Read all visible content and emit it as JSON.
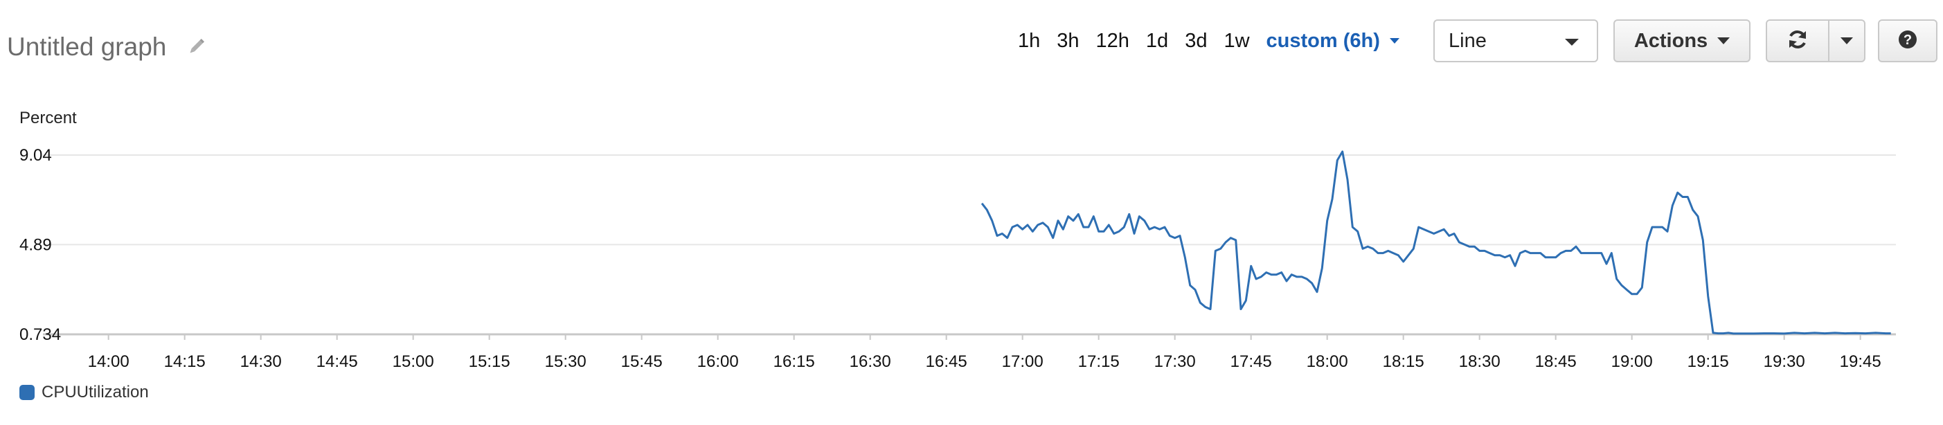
{
  "header": {
    "title": "Untitled graph",
    "ranges": [
      "1h",
      "3h",
      "12h",
      "1d",
      "3d",
      "1w"
    ],
    "custom_range": "custom (6h)",
    "view_type": "Line",
    "actions_label": "Actions",
    "help_glyph": "?"
  },
  "icons": {
    "edit": "pencil-icon",
    "refresh": "refresh-icon",
    "dropdown": "chevron-down-icon",
    "help": "question-icon"
  },
  "colors": {
    "series": "#2e6fb3",
    "accent": "#1a5fb4",
    "grid": "#e6e6e6",
    "axis": "#c8c8c8"
  },
  "chart_data": {
    "type": "line",
    "ylabel": "Percent",
    "ylim": [
      0.734,
      9.04
    ],
    "yticks": [
      0.734,
      4.89,
      9.04
    ],
    "ytick_labels": [
      "0.734",
      "4.89",
      "9.04"
    ],
    "xlim": [
      "13:55",
      "19:52"
    ],
    "xtick_labels": [
      "14:00",
      "14:15",
      "14:30",
      "14:45",
      "15:00",
      "15:15",
      "15:30",
      "15:45",
      "16:00",
      "16:15",
      "16:30",
      "16:45",
      "17:00",
      "17:15",
      "17:30",
      "17:45",
      "18:00",
      "18:15",
      "18:30",
      "18:45",
      "19:00",
      "19:15",
      "19:30",
      "19:45"
    ],
    "grid": true,
    "legend_position": "bottom-left",
    "series": [
      {
        "name": "CPUUtilization",
        "points": [
          [
            "16:52",
            6.8
          ],
          [
            "16:53",
            6.5
          ],
          [
            "16:54",
            6.0
          ],
          [
            "16:55",
            5.3
          ],
          [
            "16:56",
            5.4
          ],
          [
            "16:57",
            5.2
          ],
          [
            "16:58",
            5.7
          ],
          [
            "16:59",
            5.8
          ],
          [
            "17:00",
            5.6
          ],
          [
            "17:01",
            5.8
          ],
          [
            "17:02",
            5.5
          ],
          [
            "17:03",
            5.8
          ],
          [
            "17:04",
            5.9
          ],
          [
            "17:05",
            5.7
          ],
          [
            "17:06",
            5.2
          ],
          [
            "17:07",
            6.0
          ],
          [
            "17:08",
            5.6
          ],
          [
            "17:09",
            6.2
          ],
          [
            "17:10",
            6.0
          ],
          [
            "17:11",
            6.3
          ],
          [
            "17:12",
            5.7
          ],
          [
            "17:13",
            5.7
          ],
          [
            "17:14",
            6.2
          ],
          [
            "17:15",
            5.5
          ],
          [
            "17:16",
            5.5
          ],
          [
            "17:17",
            5.8
          ],
          [
            "17:18",
            5.4
          ],
          [
            "17:19",
            5.5
          ],
          [
            "17:20",
            5.7
          ],
          [
            "17:21",
            6.3
          ],
          [
            "17:22",
            5.4
          ],
          [
            "17:23",
            6.2
          ],
          [
            "17:24",
            6.0
          ],
          [
            "17:25",
            5.6
          ],
          [
            "17:26",
            5.7
          ],
          [
            "17:27",
            5.6
          ],
          [
            "17:28",
            5.7
          ],
          [
            "17:29",
            5.3
          ],
          [
            "17:30",
            5.2
          ],
          [
            "17:31",
            5.3
          ],
          [
            "17:32",
            4.3
          ],
          [
            "17:33",
            3.0
          ],
          [
            "17:34",
            2.8
          ],
          [
            "17:35",
            2.2
          ],
          [
            "17:36",
            2.0
          ],
          [
            "17:37",
            1.9
          ],
          [
            "17:38",
            4.6
          ],
          [
            "17:39",
            4.7
          ],
          [
            "17:40",
            5.0
          ],
          [
            "17:41",
            5.2
          ],
          [
            "17:42",
            5.1
          ],
          [
            "17:43",
            1.9
          ],
          [
            "17:44",
            2.3
          ],
          [
            "17:45",
            3.9
          ],
          [
            "17:46",
            3.3
          ],
          [
            "17:47",
            3.4
          ],
          [
            "17:48",
            3.6
          ],
          [
            "17:49",
            3.5
          ],
          [
            "17:50",
            3.5
          ],
          [
            "17:51",
            3.6
          ],
          [
            "17:52",
            3.2
          ],
          [
            "17:53",
            3.5
          ],
          [
            "17:54",
            3.4
          ],
          [
            "17:55",
            3.4
          ],
          [
            "17:56",
            3.3
          ],
          [
            "17:57",
            3.1
          ],
          [
            "17:58",
            2.7
          ],
          [
            "17:59",
            3.8
          ],
          [
            "18:00",
            6.0
          ],
          [
            "18:01",
            7.0
          ],
          [
            "18:02",
            8.8
          ],
          [
            "18:03",
            9.2
          ],
          [
            "18:04",
            7.9
          ],
          [
            "18:05",
            5.7
          ],
          [
            "18:06",
            5.5
          ],
          [
            "18:07",
            4.7
          ],
          [
            "18:08",
            4.8
          ],
          [
            "18:09",
            4.7
          ],
          [
            "18:10",
            4.5
          ],
          [
            "18:11",
            4.5
          ],
          [
            "18:12",
            4.6
          ],
          [
            "18:13",
            4.5
          ],
          [
            "18:14",
            4.4
          ],
          [
            "18:15",
            4.1
          ],
          [
            "18:16",
            4.4
          ],
          [
            "18:17",
            4.7
          ],
          [
            "18:18",
            5.7
          ],
          [
            "18:19",
            5.6
          ],
          [
            "18:20",
            5.5
          ],
          [
            "18:21",
            5.4
          ],
          [
            "18:22",
            5.5
          ],
          [
            "18:23",
            5.6
          ],
          [
            "18:24",
            5.3
          ],
          [
            "18:25",
            5.4
          ],
          [
            "18:26",
            5.0
          ],
          [
            "18:27",
            4.9
          ],
          [
            "18:28",
            4.8
          ],
          [
            "18:29",
            4.8
          ],
          [
            "18:30",
            4.6
          ],
          [
            "18:31",
            4.6
          ],
          [
            "18:32",
            4.5
          ],
          [
            "18:33",
            4.4
          ],
          [
            "18:34",
            4.4
          ],
          [
            "18:35",
            4.3
          ],
          [
            "18:36",
            4.4
          ],
          [
            "18:37",
            3.9
          ],
          [
            "18:38",
            4.5
          ],
          [
            "18:39",
            4.6
          ],
          [
            "18:40",
            4.5
          ],
          [
            "18:41",
            4.5
          ],
          [
            "18:42",
            4.5
          ],
          [
            "18:43",
            4.3
          ],
          [
            "18:44",
            4.3
          ],
          [
            "18:45",
            4.3
          ],
          [
            "18:46",
            4.5
          ],
          [
            "18:47",
            4.6
          ],
          [
            "18:48",
            4.6
          ],
          [
            "18:49",
            4.8
          ],
          [
            "18:50",
            4.5
          ],
          [
            "18:51",
            4.5
          ],
          [
            "18:52",
            4.5
          ],
          [
            "18:53",
            4.5
          ],
          [
            "18:54",
            4.5
          ],
          [
            "18:55",
            4.0
          ],
          [
            "18:56",
            4.5
          ],
          [
            "18:57",
            3.3
          ],
          [
            "18:58",
            3.0
          ],
          [
            "18:59",
            2.8
          ],
          [
            "19:00",
            2.6
          ],
          [
            "19:01",
            2.6
          ],
          [
            "19:02",
            2.9
          ],
          [
            "19:03",
            5.0
          ],
          [
            "19:04",
            5.7
          ],
          [
            "19:05",
            5.7
          ],
          [
            "19:06",
            5.7
          ],
          [
            "19:07",
            5.5
          ],
          [
            "19:08",
            6.7
          ],
          [
            "19:09",
            7.3
          ],
          [
            "19:10",
            7.1
          ],
          [
            "19:11",
            7.1
          ],
          [
            "19:12",
            6.5
          ],
          [
            "19:13",
            6.2
          ],
          [
            "19:14",
            5.1
          ],
          [
            "19:15",
            2.5
          ],
          [
            "19:16",
            0.8
          ],
          [
            "19:17",
            0.78
          ],
          [
            "19:18",
            0.78
          ],
          [
            "19:19",
            0.8
          ],
          [
            "19:20",
            0.77
          ],
          [
            "19:22",
            0.77
          ],
          [
            "19:24",
            0.77
          ],
          [
            "19:26",
            0.78
          ],
          [
            "19:28",
            0.78
          ],
          [
            "19:30",
            0.77
          ],
          [
            "19:32",
            0.8
          ],
          [
            "19:34",
            0.78
          ],
          [
            "19:36",
            0.8
          ],
          [
            "19:38",
            0.78
          ],
          [
            "19:40",
            0.8
          ],
          [
            "19:42",
            0.78
          ],
          [
            "19:44",
            0.79
          ],
          [
            "19:46",
            0.78
          ],
          [
            "19:48",
            0.8
          ],
          [
            "19:50",
            0.78
          ],
          [
            "19:51",
            0.78
          ]
        ]
      }
    ]
  }
}
